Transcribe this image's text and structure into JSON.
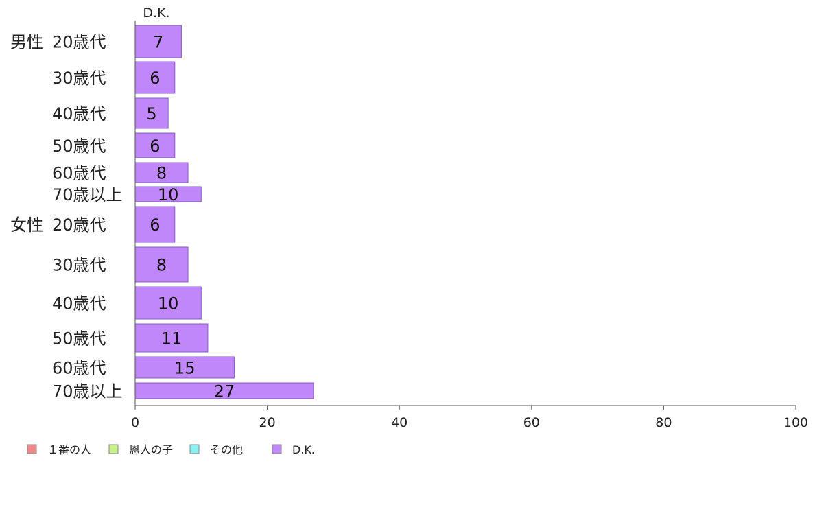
{
  "chart_data": {
    "type": "bar",
    "orientation": "horizontal",
    "stacked": true,
    "series_header": "D.K.",
    "groups": [
      {
        "label": "男性",
        "categories": [
          "20歳代",
          "30歳代",
          "40歳代",
          "50歳代",
          "60歳代",
          "70歳以上"
        ]
      },
      {
        "label": "女性",
        "categories": [
          "20歳代",
          "30歳代",
          "40歳代",
          "50歳代",
          "60歳代",
          "70歳以上"
        ]
      }
    ],
    "series": [
      {
        "name": "１番の人",
        "color": "#f08a8a",
        "values": [
          0,
          0,
          0,
          0,
          0,
          0,
          0,
          0,
          0,
          0,
          0,
          0
        ]
      },
      {
        "name": "恩人の子",
        "color": "#c8f08a",
        "values": [
          0,
          0,
          0,
          0,
          0,
          0,
          0,
          0,
          0,
          0,
          0,
          0
        ]
      },
      {
        "name": "その他",
        "color": "#8af0f0",
        "values": [
          0,
          0,
          0,
          0,
          0,
          0,
          0,
          0,
          0,
          0,
          0,
          0
        ]
      },
      {
        "name": "D.K.",
        "color": "#bf87fa",
        "values": [
          7,
          6,
          5,
          6,
          8,
          10,
          6,
          8,
          10,
          11,
          15,
          27
        ]
      }
    ],
    "xlim": [
      0,
      100
    ],
    "xticks": [
      0,
      20,
      40,
      60,
      80,
      100
    ],
    "grid": false,
    "legend_position": "bottom-left"
  }
}
